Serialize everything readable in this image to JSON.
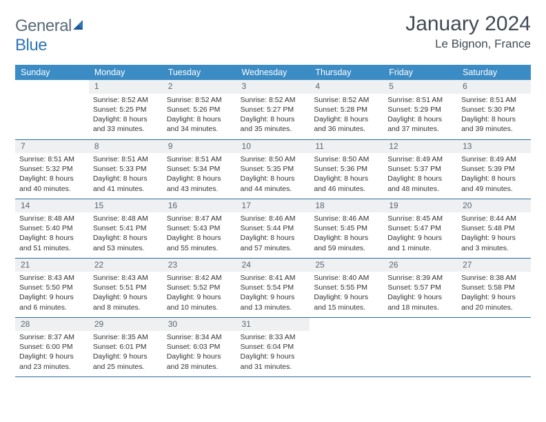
{
  "brand": {
    "part1": "General",
    "part2": "Blue"
  },
  "title": "January 2024",
  "location": "Le Bignon, France",
  "header_color": "#3b8bc4",
  "border_color": "#2e6a9e",
  "daynum_bg": "#eef0f2",
  "weekdays": [
    "Sunday",
    "Monday",
    "Tuesday",
    "Wednesday",
    "Thursday",
    "Friday",
    "Saturday"
  ],
  "weeks": [
    [
      {
        "n": "",
        "lines": []
      },
      {
        "n": "1",
        "lines": [
          "Sunrise: 8:52 AM",
          "Sunset: 5:25 PM",
          "Daylight: 8 hours",
          "and 33 minutes."
        ]
      },
      {
        "n": "2",
        "lines": [
          "Sunrise: 8:52 AM",
          "Sunset: 5:26 PM",
          "Daylight: 8 hours",
          "and 34 minutes."
        ]
      },
      {
        "n": "3",
        "lines": [
          "Sunrise: 8:52 AM",
          "Sunset: 5:27 PM",
          "Daylight: 8 hours",
          "and 35 minutes."
        ]
      },
      {
        "n": "4",
        "lines": [
          "Sunrise: 8:52 AM",
          "Sunset: 5:28 PM",
          "Daylight: 8 hours",
          "and 36 minutes."
        ]
      },
      {
        "n": "5",
        "lines": [
          "Sunrise: 8:51 AM",
          "Sunset: 5:29 PM",
          "Daylight: 8 hours",
          "and 37 minutes."
        ]
      },
      {
        "n": "6",
        "lines": [
          "Sunrise: 8:51 AM",
          "Sunset: 5:30 PM",
          "Daylight: 8 hours",
          "and 39 minutes."
        ]
      }
    ],
    [
      {
        "n": "7",
        "lines": [
          "Sunrise: 8:51 AM",
          "Sunset: 5:32 PM",
          "Daylight: 8 hours",
          "and 40 minutes."
        ]
      },
      {
        "n": "8",
        "lines": [
          "Sunrise: 8:51 AM",
          "Sunset: 5:33 PM",
          "Daylight: 8 hours",
          "and 41 minutes."
        ]
      },
      {
        "n": "9",
        "lines": [
          "Sunrise: 8:51 AM",
          "Sunset: 5:34 PM",
          "Daylight: 8 hours",
          "and 43 minutes."
        ]
      },
      {
        "n": "10",
        "lines": [
          "Sunrise: 8:50 AM",
          "Sunset: 5:35 PM",
          "Daylight: 8 hours",
          "and 44 minutes."
        ]
      },
      {
        "n": "11",
        "lines": [
          "Sunrise: 8:50 AM",
          "Sunset: 5:36 PM",
          "Daylight: 8 hours",
          "and 46 minutes."
        ]
      },
      {
        "n": "12",
        "lines": [
          "Sunrise: 8:49 AM",
          "Sunset: 5:37 PM",
          "Daylight: 8 hours",
          "and 48 minutes."
        ]
      },
      {
        "n": "13",
        "lines": [
          "Sunrise: 8:49 AM",
          "Sunset: 5:39 PM",
          "Daylight: 8 hours",
          "and 49 minutes."
        ]
      }
    ],
    [
      {
        "n": "14",
        "lines": [
          "Sunrise: 8:48 AM",
          "Sunset: 5:40 PM",
          "Daylight: 8 hours",
          "and 51 minutes."
        ]
      },
      {
        "n": "15",
        "lines": [
          "Sunrise: 8:48 AM",
          "Sunset: 5:41 PM",
          "Daylight: 8 hours",
          "and 53 minutes."
        ]
      },
      {
        "n": "16",
        "lines": [
          "Sunrise: 8:47 AM",
          "Sunset: 5:43 PM",
          "Daylight: 8 hours",
          "and 55 minutes."
        ]
      },
      {
        "n": "17",
        "lines": [
          "Sunrise: 8:46 AM",
          "Sunset: 5:44 PM",
          "Daylight: 8 hours",
          "and 57 minutes."
        ]
      },
      {
        "n": "18",
        "lines": [
          "Sunrise: 8:46 AM",
          "Sunset: 5:45 PM",
          "Daylight: 8 hours",
          "and 59 minutes."
        ]
      },
      {
        "n": "19",
        "lines": [
          "Sunrise: 8:45 AM",
          "Sunset: 5:47 PM",
          "Daylight: 9 hours",
          "and 1 minute."
        ]
      },
      {
        "n": "20",
        "lines": [
          "Sunrise: 8:44 AM",
          "Sunset: 5:48 PM",
          "Daylight: 9 hours",
          "and 3 minutes."
        ]
      }
    ],
    [
      {
        "n": "21",
        "lines": [
          "Sunrise: 8:43 AM",
          "Sunset: 5:50 PM",
          "Daylight: 9 hours",
          "and 6 minutes."
        ]
      },
      {
        "n": "22",
        "lines": [
          "Sunrise: 8:43 AM",
          "Sunset: 5:51 PM",
          "Daylight: 9 hours",
          "and 8 minutes."
        ]
      },
      {
        "n": "23",
        "lines": [
          "Sunrise: 8:42 AM",
          "Sunset: 5:52 PM",
          "Daylight: 9 hours",
          "and 10 minutes."
        ]
      },
      {
        "n": "24",
        "lines": [
          "Sunrise: 8:41 AM",
          "Sunset: 5:54 PM",
          "Daylight: 9 hours",
          "and 13 minutes."
        ]
      },
      {
        "n": "25",
        "lines": [
          "Sunrise: 8:40 AM",
          "Sunset: 5:55 PM",
          "Daylight: 9 hours",
          "and 15 minutes."
        ]
      },
      {
        "n": "26",
        "lines": [
          "Sunrise: 8:39 AM",
          "Sunset: 5:57 PM",
          "Daylight: 9 hours",
          "and 18 minutes."
        ]
      },
      {
        "n": "27",
        "lines": [
          "Sunrise: 8:38 AM",
          "Sunset: 5:58 PM",
          "Daylight: 9 hours",
          "and 20 minutes."
        ]
      }
    ],
    [
      {
        "n": "28",
        "lines": [
          "Sunrise: 8:37 AM",
          "Sunset: 6:00 PM",
          "Daylight: 9 hours",
          "and 23 minutes."
        ]
      },
      {
        "n": "29",
        "lines": [
          "Sunrise: 8:35 AM",
          "Sunset: 6:01 PM",
          "Daylight: 9 hours",
          "and 25 minutes."
        ]
      },
      {
        "n": "30",
        "lines": [
          "Sunrise: 8:34 AM",
          "Sunset: 6:03 PM",
          "Daylight: 9 hours",
          "and 28 minutes."
        ]
      },
      {
        "n": "31",
        "lines": [
          "Sunrise: 8:33 AM",
          "Sunset: 6:04 PM",
          "Daylight: 9 hours",
          "and 31 minutes."
        ]
      },
      {
        "n": "",
        "lines": []
      },
      {
        "n": "",
        "lines": []
      },
      {
        "n": "",
        "lines": []
      }
    ]
  ]
}
